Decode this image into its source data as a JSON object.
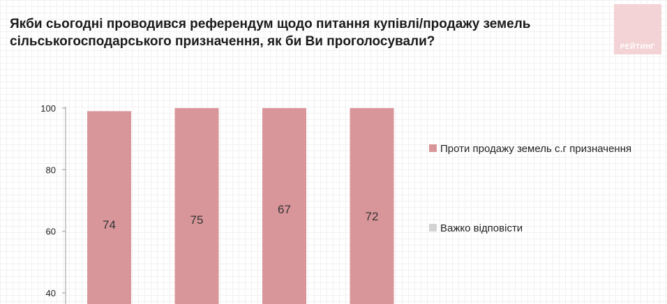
{
  "header": {
    "title_line1": "Якби сьогодні проводився референдум щодо питання купівлі/продажу земель",
    "title_line2": "сільськогосподарського призначення, як би Ви проголосували?",
    "logo_text": "РЕЙТИНГ"
  },
  "chart_data": {
    "type": "bar",
    "stacked": true,
    "categories": [
      "",
      "",
      "",
      ""
    ],
    "ylim": [
      0,
      100
    ],
    "yticks": [
      40,
      60,
      80,
      100
    ],
    "series": [
      {
        "name": "Проти продажу земель с.г призначення",
        "values": [
          74,
          75,
          67,
          72
        ],
        "color": "#d9969a"
      },
      {
        "name": "Важко відповісти",
        "values": [
          null,
          null,
          null,
          null
        ],
        "color": "#d3d3d3"
      }
    ],
    "legend_position": "right"
  }
}
